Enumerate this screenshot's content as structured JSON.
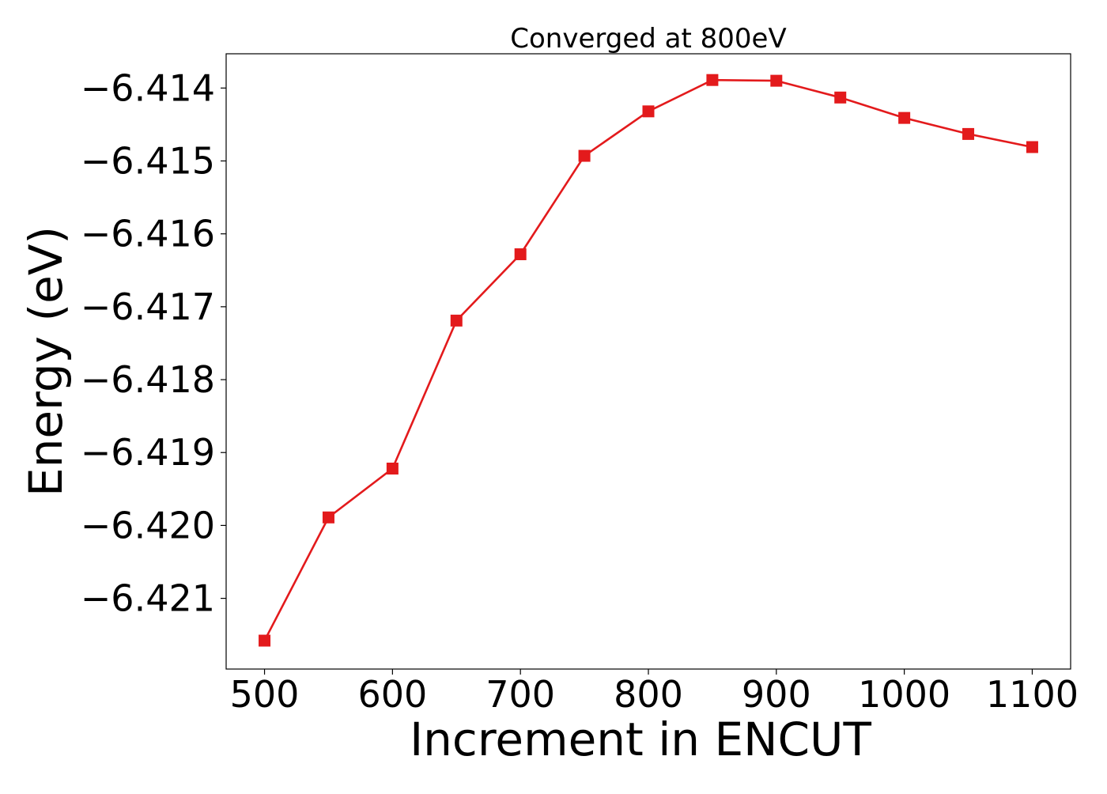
{
  "chart_data": {
    "type": "line",
    "title": "Converged at 800eV",
    "xlabel": "Increment in ENCUT",
    "ylabel": "Energy (eV)",
    "x": [
      500,
      550,
      600,
      650,
      700,
      750,
      800,
      850,
      900,
      950,
      1000,
      1050,
      1100
    ],
    "series": [
      {
        "values": [
          -6.42158,
          -6.41989,
          -6.41922,
          -6.41719,
          -6.41628,
          -6.41493,
          -6.41432,
          -6.41389,
          -6.4139,
          -6.41413,
          -6.41441,
          -6.41463,
          -6.41481
        ],
        "color": "#e31a1c",
        "marker": "square"
      }
    ],
    "xlim": [
      470,
      1130
    ],
    "ylim": [
      -6.42197,
      -6.41353
    ],
    "xticks": [
      500,
      600,
      700,
      800,
      900,
      1000,
      1100
    ],
    "xtick_labels": [
      "500",
      "600",
      "700",
      "800",
      "900",
      "1000",
      "1100"
    ],
    "yticks": [
      -6.414,
      -6.415,
      -6.416,
      -6.417,
      -6.418,
      -6.419,
      -6.42,
      -6.421
    ],
    "ytick_labels": [
      "−6.414",
      "−6.415",
      "−6.416",
      "−6.417",
      "−6.418",
      "−6.419",
      "−6.420",
      "−6.421"
    ],
    "grid": false,
    "legend": "none"
  }
}
